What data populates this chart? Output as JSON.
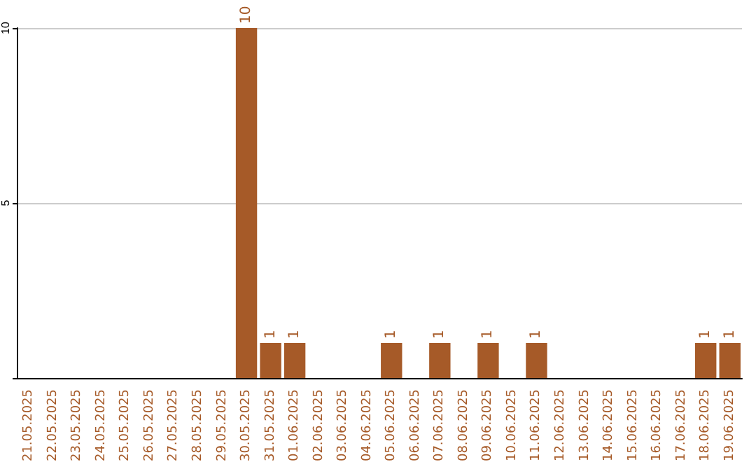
{
  "chart_data": {
    "type": "bar",
    "categories": [
      "21.05.2025",
      "22.05.2025",
      "23.05.2025",
      "24.05.2025",
      "25.05.2025",
      "26.05.2025",
      "27.05.2025",
      "28.05.2025",
      "29.05.2025",
      "30.05.2025",
      "31.05.2025",
      "01.06.2025",
      "02.06.2025",
      "03.06.2025",
      "04.06.2025",
      "05.06.2025",
      "06.06.2025",
      "07.06.2025",
      "08.06.2025",
      "09.06.2025",
      "10.06.2025",
      "11.06.2025",
      "12.06.2025",
      "13.06.2025",
      "14.06.2025",
      "15.06.2025",
      "16.06.2025",
      "17.06.2025",
      "18.06.2025",
      "19.06.2025"
    ],
    "values": [
      0,
      0,
      0,
      0,
      0,
      0,
      0,
      0,
      0,
      10,
      1,
      1,
      0,
      0,
      0,
      1,
      0,
      1,
      0,
      1,
      0,
      1,
      0,
      0,
      0,
      0,
      0,
      0,
      1,
      1
    ],
    "value_labels": [
      null,
      null,
      null,
      null,
      null,
      null,
      null,
      null,
      null,
      "10",
      "1",
      "1",
      null,
      null,
      null,
      "1",
      null,
      "1",
      null,
      "1",
      null,
      "1",
      null,
      null,
      null,
      null,
      null,
      null,
      "1",
      "1"
    ],
    "color": "#a65a28",
    "ylim": [
      0,
      10
    ],
    "yticks": [
      {
        "value": 0,
        "label": null
      },
      5,
      10
    ],
    "grid": "y"
  }
}
